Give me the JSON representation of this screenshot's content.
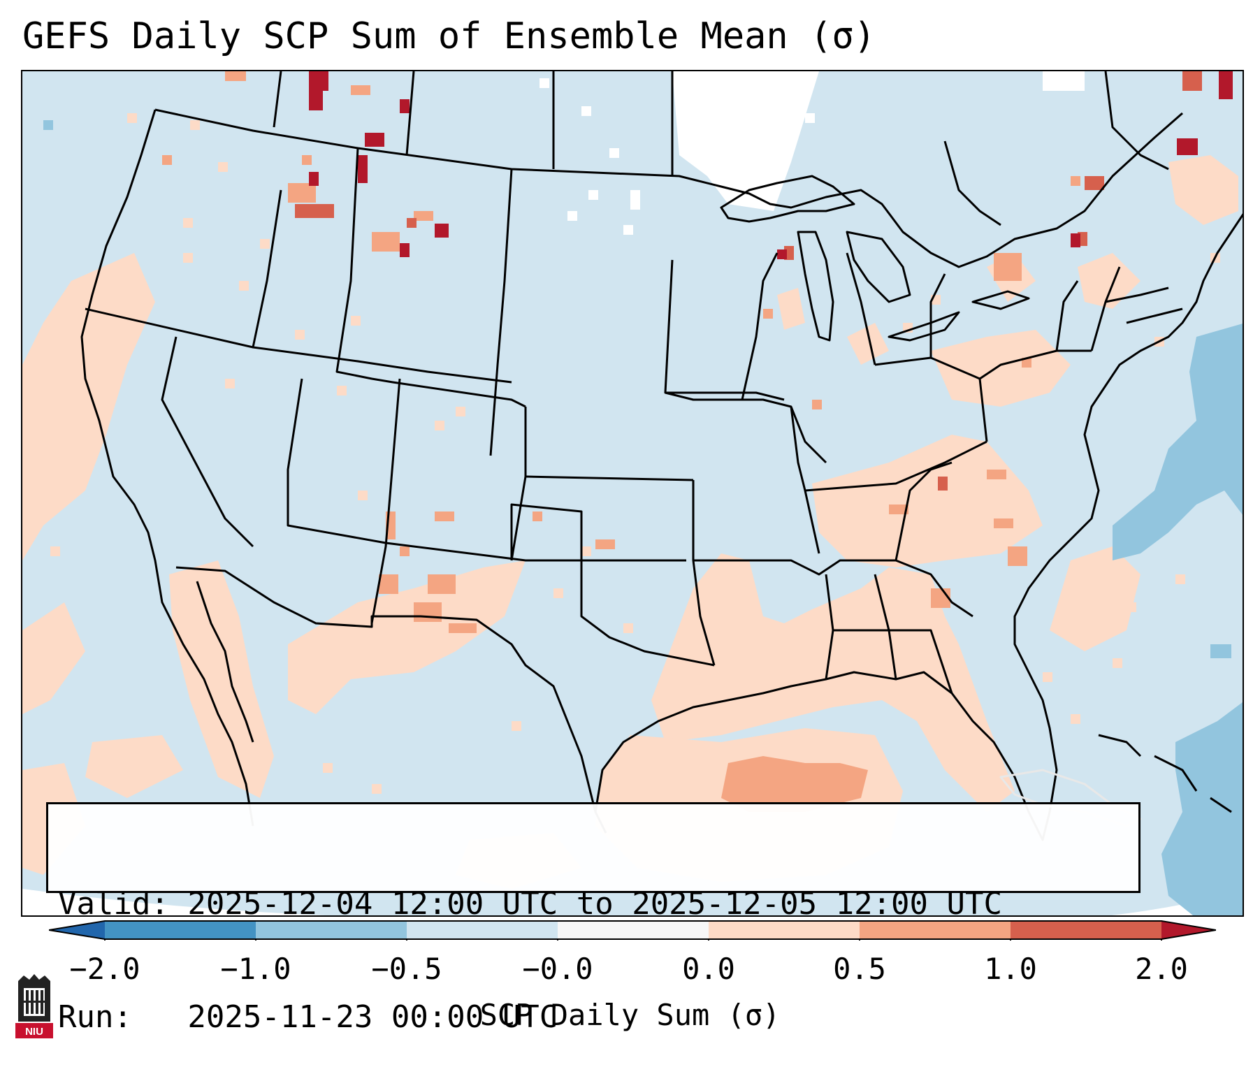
{
  "title": "GEFS Daily SCP Sum of Ensemble Mean (σ)",
  "info": {
    "valid_line": "Valid: 2025-12-04 12:00 UTC to 2025-12-05 12:00 UTC",
    "run_line": "Run:   2025-11-23 00:00 UTC"
  },
  "colorbar": {
    "label": "SCP Daily Sum (σ)",
    "ticks": [
      "−2.0",
      "−1.0",
      "−0.5",
      "−0.0",
      "0.0",
      "0.5",
      "1.0",
      "2.0"
    ],
    "colors": [
      "#4393c3",
      "#92c5de",
      "#d1e5f0",
      "#f7f7f7",
      "#fddbc7",
      "#f4a582",
      "#d6604d"
    ],
    "under_color": "#2166ac",
    "over_color": "#b2182b"
  },
  "map": {
    "background_color": "#d1e5f0",
    "missing_color": "#ffffff",
    "outline_color": "#000000"
  },
  "logo": {
    "text": "NIU",
    "color": "#c8102e"
  }
}
